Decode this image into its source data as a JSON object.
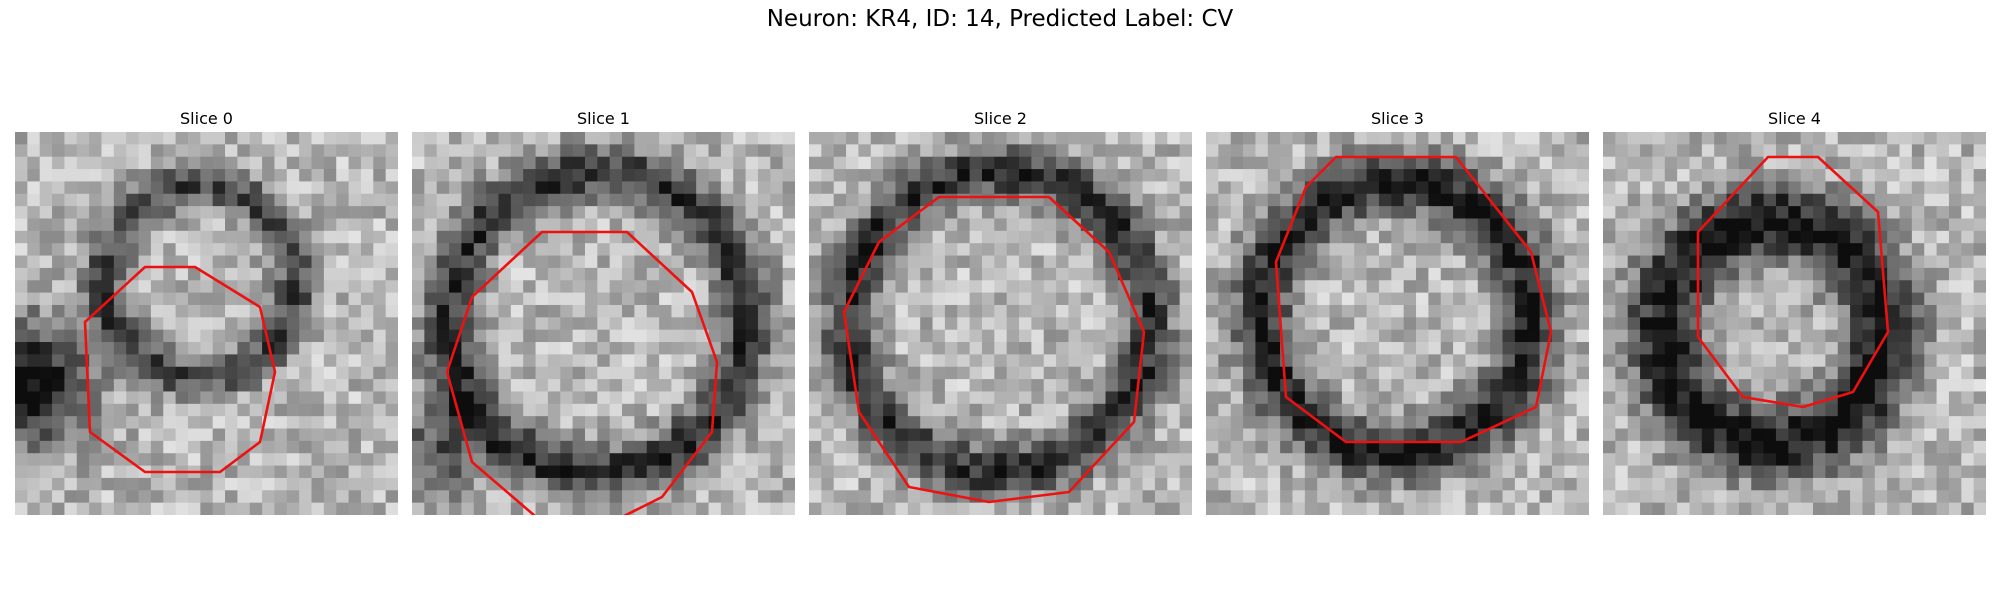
{
  "figure": {
    "title": "Neuron: KR4, ID: 14, Predicted Label: CV",
    "contour_color": "#ee1111"
  },
  "panels": [
    {
      "title": "Slice 0"
    },
    {
      "title": "Slice 1"
    },
    {
      "title": "Slice 2"
    },
    {
      "title": "Slice 3"
    },
    {
      "title": "Slice 4"
    }
  ]
}
